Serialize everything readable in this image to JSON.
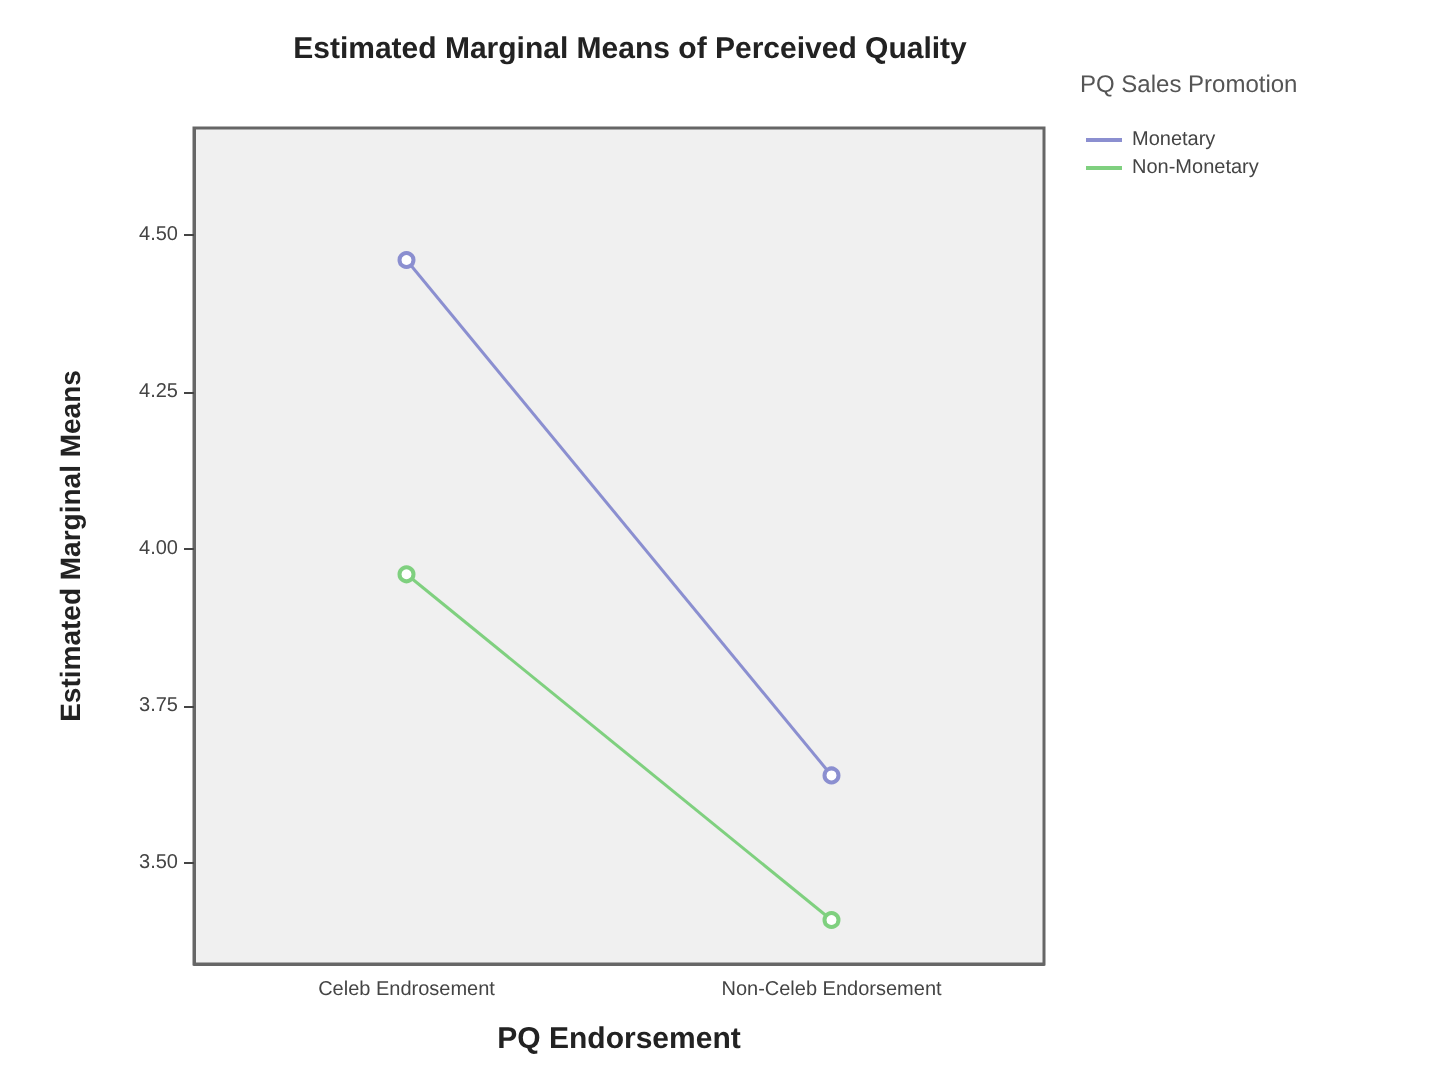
{
  "chart_data": {
    "type": "line",
    "title": "Estimated Marginal Means of Perceived Quality",
    "xlabel": "PQ Endorsement",
    "ylabel": "Estimated Marginal Means",
    "legend_title": "PQ Sales Promotion",
    "categories": [
      "Celeb Endrosement",
      "Non-Celeb Endorsement"
    ],
    "series": [
      {
        "name": "Monetary",
        "color": "#8b8fd0",
        "values": [
          4.46,
          3.64
        ]
      },
      {
        "name": "Non-Monetary",
        "color": "#7fd07f",
        "values": [
          3.96,
          3.41
        ]
      }
    ],
    "ylim": [
      3.34,
      4.67
    ],
    "yticks": [
      {
        "value": 3.5,
        "label": "3.50"
      },
      3.75,
      {
        "value": 4,
        "label": "4.00"
      },
      4.25,
      {
        "value": 4.5,
        "label": "4.50"
      }
    ],
    "marker": "circle",
    "legend": "top right",
    "grid": false
  }
}
